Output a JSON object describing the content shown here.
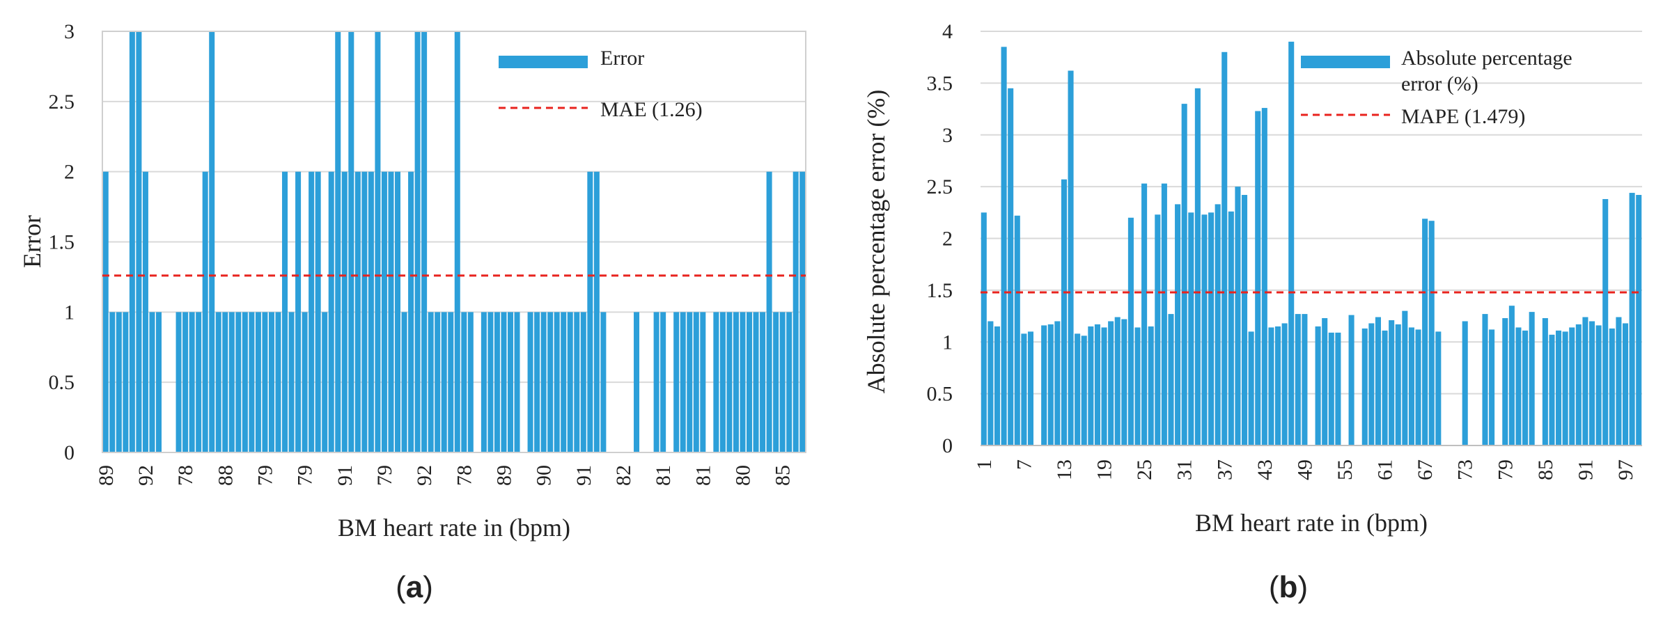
{
  "chart_data": [
    {
      "type": "bar",
      "panel_label": "a",
      "title": "",
      "xlabel": "BM heart rate in (bpm)",
      "ylabel": "Error",
      "ylim": [
        0,
        3
      ],
      "yticks": [
        "0",
        "0.5",
        "1",
        "1.5",
        "2",
        "2.5",
        "3"
      ],
      "ytick_values": [
        0,
        0.5,
        1,
        1.5,
        2,
        2.5,
        3
      ],
      "xtick_labels": [
        "89",
        "92",
        "78",
        "88",
        "79",
        "79",
        "91",
        "79",
        "92",
        "78",
        "89",
        "90",
        "91",
        "82",
        "81",
        "81",
        "80",
        "85"
      ],
      "xtick_step": 6,
      "grid": true,
      "bar_color": "#2c9fd9",
      "series": [
        {
          "name": "Error",
          "values": [
            2,
            1,
            1,
            1,
            3,
            3,
            2,
            1,
            1,
            0,
            0,
            1,
            1,
            1,
            1,
            2,
            3,
            1,
            1,
            1,
            1,
            1,
            1,
            1,
            1,
            1,
            1,
            2,
            1,
            2,
            1,
            2,
            2,
            1,
            2,
            3,
            2,
            3,
            2,
            2,
            2,
            3,
            2,
            2,
            2,
            1,
            2,
            3,
            3,
            1,
            1,
            1,
            1,
            3,
            1,
            1,
            0,
            1,
            1,
            1,
            1,
            1,
            1,
            0,
            1,
            1,
            1,
            1,
            1,
            1,
            1,
            1,
            1,
            2,
            2,
            1,
            0,
            0,
            0,
            0,
            1,
            0,
            0,
            1,
            1,
            0,
            1,
            1,
            1,
            1,
            1,
            0,
            1,
            1,
            1,
            1,
            1,
            1,
            1,
            1,
            2,
            1,
            1,
            1,
            2,
            2
          ]
        }
      ],
      "reference_line": {
        "name": "MAE (1.26)",
        "value": 1.26,
        "color": "#e8231e"
      },
      "legend": [
        {
          "label": "Error",
          "kind": "bar"
        },
        {
          "label": "MAE (1.26)",
          "kind": "dashed-line"
        }
      ],
      "legend_position": "top-right"
    },
    {
      "type": "bar",
      "panel_label": "b",
      "title": "",
      "xlabel": "BM heart rate in (bpm)",
      "ylabel": "Absolute percentage error (%)",
      "ylim": [
        0,
        4
      ],
      "yticks": [
        "0",
        "0.5",
        "1",
        "1.5",
        "2",
        "2.5",
        "3",
        "3.5",
        "4"
      ],
      "ytick_values": [
        0,
        0.5,
        1,
        1.5,
        2,
        2.5,
        3,
        3.5,
        4
      ],
      "xtick_labels": [
        "1",
        "7",
        "13",
        "19",
        "25",
        "31",
        "37",
        "43",
        "49",
        "55",
        "61",
        "67",
        "73",
        "79",
        "85",
        "91",
        "97"
      ],
      "xtick_step": 6,
      "grid": true,
      "bar_color": "#2c9fd9",
      "series": [
        {
          "name": "Absolute percentage error (%)",
          "values": [
            2.25,
            1.2,
            1.15,
            3.85,
            3.45,
            2.22,
            1.08,
            1.1,
            0,
            1.16,
            1.17,
            1.2,
            2.57,
            3.62,
            1.08,
            1.06,
            1.15,
            1.17,
            1.14,
            1.2,
            1.24,
            1.22,
            2.2,
            1.14,
            2.53,
            1.15,
            2.23,
            2.53,
            1.27,
            2.33,
            3.3,
            2.25,
            3.45,
            2.23,
            2.25,
            2.33,
            3.8,
            2.26,
            2.5,
            2.42,
            1.1,
            3.23,
            3.26,
            1.14,
            1.15,
            1.18,
            3.9,
            1.27,
            1.27,
            0,
            1.15,
            1.23,
            1.09,
            1.09,
            0,
            1.26,
            0,
            1.13,
            1.18,
            1.24,
            1.11,
            1.21,
            1.17,
            1.3,
            1.14,
            1.12,
            2.19,
            2.17,
            1.1,
            0,
            0,
            0,
            1.2,
            0,
            0,
            1.27,
            1.12,
            0,
            1.23,
            1.35,
            1.14,
            1.11,
            1.29,
            0,
            1.23,
            1.07,
            1.11,
            1.1,
            1.14,
            1.17,
            1.24,
            1.2,
            1.16,
            2.38,
            1.13,
            1.24,
            1.18,
            2.44,
            2.42
          ]
        }
      ],
      "reference_line": {
        "name": "MAPE (1.479)",
        "value": 1.479,
        "color": "#e8231e"
      },
      "legend": [
        {
          "label": "Absolute percentage\nerror (%)",
          "kind": "bar"
        },
        {
          "label": "MAPE (1.479)",
          "kind": "dashed-line"
        }
      ],
      "legend_position": "top-right"
    }
  ]
}
